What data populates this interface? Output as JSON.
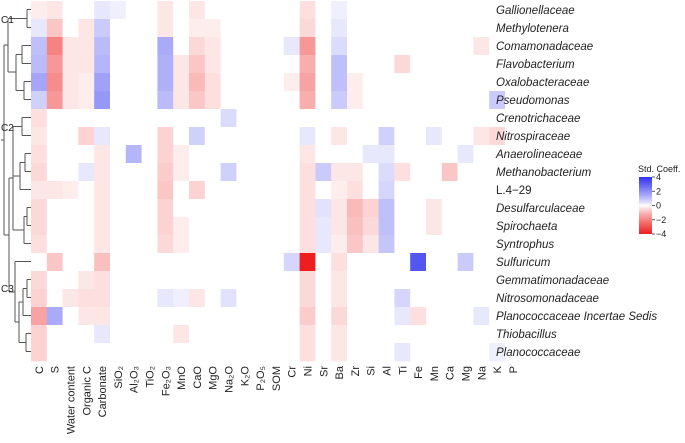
{
  "chart_data": {
    "type": "heatmap",
    "legend": {
      "title": "Std. Coeff.",
      "ticks": [
        4,
        2,
        0,
        -2,
        -4
      ],
      "colors": {
        "positive": "#2f33ee",
        "zero": "#ffffff",
        "negative": "#ee1e1e"
      }
    },
    "cluster_labels": [
      "C1",
      "C2",
      "C3"
    ],
    "rows": [
      "Gallionellaceae",
      "Methylotenera",
      "Comamonadaceae",
      "Flavobacterium",
      "Oxalobacteraceae",
      "Pseudomonas",
      "Crenotrichaceae",
      "Nitrospiraceae",
      "Anaerolineaceae",
      "Methanobacterium",
      "L.4−29",
      "Desulfarculaceae",
      "Spirochaeta",
      "Syntrophus",
      "Sulfuricum",
      "Gemmatimonadaceae",
      "Nitrosomonadaceae",
      "Planococcaceae Incertae Sedis",
      "Thiobacillus",
      "Planococcaceae"
    ],
    "italic_rows": [
      true,
      true,
      true,
      true,
      true,
      true,
      true,
      true,
      true,
      true,
      false,
      true,
      true,
      true,
      true,
      true,
      true,
      true,
      true,
      true
    ],
    "columns": [
      "C",
      "S",
      "Water content",
      "Organic C",
      "Carbonate",
      "SiO₂",
      "Al₂O₃",
      "TiO₂",
      "Fe₂O₃",
      "MnO",
      "CaO",
      "MgO",
      "Na₂O",
      "K₂O",
      "P₂O₅",
      "SOM",
      "Cr",
      "Ni",
      "Sr",
      "Ba",
      "Zr",
      "Si",
      "Al",
      "Ti",
      "Fe",
      "Mn",
      "Ca",
      "Mg",
      "Na",
      "K",
      "P"
    ],
    "values": [
      [
        -0.2,
        -0.3,
        0,
        0,
        0.3,
        0.2,
        0,
        0,
        -0.3,
        0,
        -0.3,
        0,
        0,
        0,
        0,
        0,
        0,
        -0.4,
        0,
        0.2,
        0,
        0,
        0,
        0,
        0,
        0,
        0,
        0,
        0,
        0,
        0
      ],
      [
        0.3,
        -0.8,
        0,
        -0.3,
        0.8,
        0,
        0,
        0,
        -0.3,
        0,
        -0.2,
        -0.2,
        0,
        0,
        0,
        0,
        0,
        -0.5,
        0,
        0.3,
        0,
        0,
        0,
        0,
        0,
        0,
        0,
        0,
        0,
        0,
        0
      ],
      [
        1.0,
        -2.0,
        -0.3,
        -0.3,
        1.1,
        0,
        0,
        0,
        1.4,
        0,
        -0.5,
        -0.3,
        0,
        0,
        0,
        0,
        0.3,
        -1.6,
        0,
        0.5,
        0,
        0,
        0,
        0,
        0,
        0,
        0,
        0,
        -0.3,
        0,
        0
      ],
      [
        1.1,
        -1.6,
        -0.3,
        -0.3,
        1.2,
        0,
        0,
        0,
        1.3,
        -0.3,
        -0.8,
        -0.3,
        0,
        0,
        0,
        0,
        0,
        -1.2,
        0,
        1.0,
        0,
        0,
        0,
        -0.5,
        0,
        0,
        0,
        0,
        0,
        0,
        0
      ],
      [
        1.5,
        -1.8,
        -0.3,
        -0.2,
        1.6,
        0,
        0,
        0,
        1.3,
        -0.3,
        -1.0,
        -0.4,
        0,
        0,
        0,
        0,
        -0.2,
        -1.4,
        0,
        1.0,
        -0.2,
        0,
        0,
        0,
        0,
        0,
        0,
        0,
        0,
        0,
        0
      ],
      [
        0.7,
        -1.6,
        -0.3,
        -0.2,
        1.8,
        0,
        0,
        0,
        1.1,
        -0.3,
        -0.8,
        -0.4,
        0,
        0,
        0,
        0,
        0,
        -1.2,
        0,
        0.8,
        -0.2,
        0,
        0,
        0,
        0,
        0,
        0,
        0,
        0,
        0.8,
        0
      ],
      [
        -0.4,
        0,
        0,
        0,
        0,
        0,
        0,
        0,
        0,
        0,
        0,
        0,
        0.5,
        0,
        0,
        0,
        0,
        0,
        0,
        0,
        0,
        0,
        0,
        0,
        0,
        0,
        0,
        0,
        0,
        0,
        0
      ],
      [
        -0.3,
        0,
        0,
        -0.6,
        0.3,
        0,
        0,
        0,
        -0.6,
        0,
        0.7,
        0,
        0,
        0,
        0,
        0,
        0,
        0.3,
        0,
        -0.3,
        0,
        0,
        0.7,
        0,
        0,
        0.3,
        0,
        0,
        -0.3,
        -0.5,
        0
      ],
      [
        -0.4,
        0,
        0,
        0,
        -0.3,
        0,
        1.2,
        0,
        -0.6,
        -0.2,
        0,
        0,
        0,
        0,
        0,
        0,
        0,
        -0.3,
        0,
        0,
        0,
        0.3,
        0.3,
        0,
        0,
        0,
        0,
        0.3,
        0,
        0,
        0
      ],
      [
        -0.5,
        0,
        0,
        0.3,
        -0.3,
        0,
        0,
        0,
        -0.7,
        -0.2,
        0,
        0,
        0.7,
        0,
        0,
        0,
        0,
        -0.4,
        0.8,
        -0.3,
        -0.3,
        0,
        0.5,
        -0.4,
        0,
        0,
        -0.8,
        0,
        0,
        0,
        0
      ],
      [
        -0.3,
        -0.3,
        -0.2,
        0,
        -0.3,
        0,
        0,
        0,
        -0.8,
        0,
        -0.6,
        0,
        0,
        0,
        0,
        0,
        0,
        -0.4,
        0,
        -0.2,
        -0.4,
        0,
        0.6,
        0,
        0,
        0,
        0,
        0,
        0,
        0,
        0
      ],
      [
        -0.5,
        0,
        0,
        0,
        -0.3,
        0,
        0,
        0,
        -0.6,
        0,
        0,
        0,
        0,
        0,
        0,
        0,
        0,
        -0.4,
        0.4,
        -0.3,
        -1.0,
        -0.6,
        1.0,
        0,
        0,
        -0.3,
        0,
        0,
        0,
        0,
        0
      ],
      [
        -0.5,
        0,
        0,
        0,
        -0.3,
        0,
        0,
        0,
        -0.6,
        -0.2,
        0,
        0,
        0,
        0,
        0,
        0,
        0,
        -0.4,
        0.3,
        -0.3,
        -0.9,
        -0.5,
        1.0,
        0,
        0,
        -0.3,
        0,
        0,
        0,
        0,
        0
      ],
      [
        -0.4,
        0,
        0,
        0,
        -0.3,
        0,
        0,
        0,
        -0.5,
        -0.2,
        0,
        0,
        0,
        0,
        0,
        0,
        0,
        -0.4,
        0.3,
        -0.2,
        -0.8,
        -0.3,
        0.9,
        0,
        0,
        0,
        0,
        0,
        0,
        0,
        0
      ],
      [
        0,
        -0.8,
        0,
        0,
        -0.9,
        0,
        0,
        0,
        0,
        0,
        0,
        0,
        0,
        0,
        0,
        0,
        0.6,
        -4.2,
        0,
        -0.4,
        0,
        0,
        0,
        0,
        3.2,
        0,
        0,
        0.8,
        0,
        0,
        0
      ],
      [
        -0.5,
        0,
        0,
        -0.3,
        -0.4,
        0,
        0,
        0,
        0,
        0,
        0,
        0,
        0,
        0,
        0,
        0,
        0,
        -0.5,
        0,
        -0.3,
        0,
        0,
        0,
        0,
        0,
        0,
        0,
        0,
        0,
        0,
        0
      ],
      [
        -0.6,
        0,
        -0.3,
        -0.4,
        -0.4,
        0,
        0,
        0,
        0.3,
        0.2,
        -0.3,
        0,
        0.4,
        0,
        0,
        0,
        0,
        -0.5,
        0,
        -0.3,
        0,
        0,
        0,
        0.6,
        0,
        0,
        0,
        0,
        0,
        0,
        0
      ],
      [
        -1.4,
        1.4,
        0,
        -0.3,
        -0.3,
        0,
        0,
        0,
        0,
        0,
        0,
        0,
        0,
        0,
        0,
        0,
        0,
        -0.7,
        0,
        -0.5,
        0,
        0,
        0,
        0.3,
        -0.4,
        0,
        0,
        0,
        0.3,
        0,
        0
      ],
      [
        -0.6,
        0,
        0,
        0,
        0.3,
        0,
        0,
        0,
        0,
        -0.3,
        0,
        0,
        0,
        0,
        0,
        0,
        0,
        -0.4,
        0,
        -0.3,
        0,
        0,
        0,
        0,
        0,
        0,
        0,
        0,
        0,
        0,
        0
      ],
      [
        -0.6,
        0,
        0,
        0,
        0,
        0,
        0,
        0,
        0,
        0,
        0,
        0,
        0,
        0,
        0,
        0,
        0,
        -0.4,
        0,
        -0.3,
        0,
        0,
        0,
        0.3,
        0,
        0,
        0,
        0,
        0,
        0.2,
        0
      ]
    ]
  }
}
